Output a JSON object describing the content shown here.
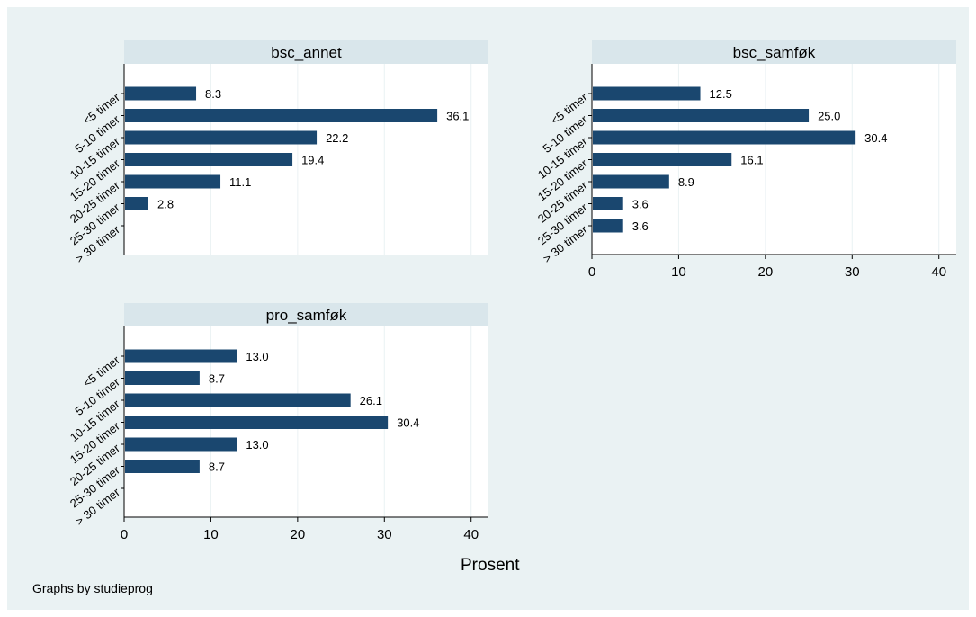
{
  "chart_data": {
    "type": "bar",
    "orientation": "horizontal",
    "categories": [
      "<5 timer",
      "5-10 timer",
      "10-15 timer",
      "15-20 timer",
      "20-25 timer",
      "25-30 timer",
      "> 30 timer"
    ],
    "xlabel": "Prosent",
    "xlim": [
      0,
      42
    ],
    "xticks": [
      0,
      10,
      20,
      30,
      40
    ],
    "grid": true,
    "note": "Graphs by studieprog",
    "panels": [
      {
        "title": "bsc_annet",
        "values": [
          8.3,
          36.1,
          22.2,
          19.4,
          11.1,
          2.8,
          null
        ],
        "labels": [
          "8.3",
          "36.1",
          "22.2",
          "19.4",
          "11.1",
          "2.8",
          ""
        ]
      },
      {
        "title": "bsc_samføk",
        "values": [
          12.5,
          25.0,
          30.4,
          16.1,
          8.9,
          3.6,
          3.6
        ],
        "labels": [
          "12.5",
          "25.0",
          "30.4",
          "16.1",
          "8.9",
          "3.6",
          "3.6"
        ]
      },
      {
        "title": "pro_samføk",
        "values": [
          13.0,
          8.7,
          26.1,
          30.4,
          13.0,
          8.7,
          null
        ],
        "labels": [
          "13.0",
          "8.7",
          "26.1",
          "30.4",
          "13.0",
          "8.7",
          ""
        ]
      }
    ],
    "colors": {
      "bar": "#1a476f",
      "header": "#d9e6eb",
      "plot": "#ffffff",
      "grid": "#eaf2f3",
      "background": "#eaf2f3"
    }
  }
}
